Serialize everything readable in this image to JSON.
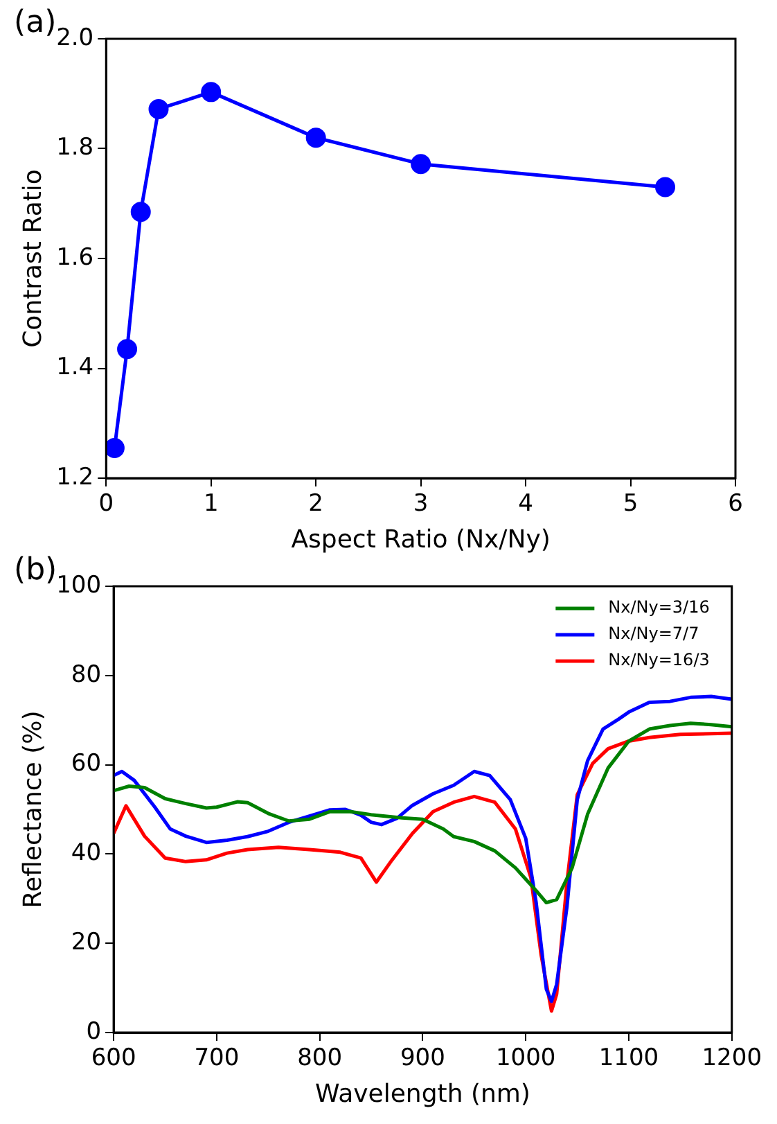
{
  "chart_data": [
    {
      "type": "line",
      "title": "(a)",
      "xlabel": "Aspect Ratio (Nx/Ny)",
      "ylabel": "Contrast Ratio",
      "xlim": [
        0,
        6
      ],
      "xticks": [
        0,
        1,
        2,
        3,
        4,
        5,
        6
      ],
      "ylim": [
        1.2,
        2.0
      ],
      "yticks": [
        {
          "value": 1.2,
          "label": "1.2"
        },
        {
          "value": 1.4,
          "label": "1.4"
        },
        {
          "value": 1.6,
          "label": "1.6"
        },
        {
          "value": 1.8,
          "label": "1.8"
        },
        {
          "value": 2.0,
          "label": "2.0"
        }
      ],
      "grid": false,
      "legend": false,
      "marker": "circle",
      "line_style": "solid",
      "series": [
        {
          "color": "#0000ff",
          "x": [
            0.08,
            0.2,
            0.33,
            0.5,
            1,
            2,
            3,
            5.33
          ],
          "values": [
            1.255,
            1.435,
            1.685,
            1.872,
            1.903,
            1.82,
            1.772,
            1.73
          ]
        }
      ]
    },
    {
      "type": "line",
      "title": "(b)",
      "xlabel": "Wavelength (nm)",
      "ylabel": "Reflectance (%)",
      "xlim": [
        600,
        1200
      ],
      "xticks": [
        600,
        700,
        800,
        900,
        1000,
        1100,
        1200
      ],
      "ylim": [
        0,
        100
      ],
      "yticks": [
        0,
        20,
        40,
        60,
        80,
        100
      ],
      "grid": false,
      "legend": "top right",
      "marker": "none",
      "line_style": "solid",
      "series": [
        {
          "name": "Nx/Ny=3/16",
          "color": "#008000",
          "x": [
            600,
            615,
            630,
            650,
            670,
            690,
            700,
            720,
            730,
            750,
            770,
            790,
            810,
            830,
            850,
            880,
            900,
            920,
            930,
            950,
            970,
            990,
            1010,
            1020,
            1030,
            1045,
            1060,
            1080,
            1100,
            1120,
            1140,
            1160,
            1180,
            1200
          ],
          "values": [
            54.2,
            55.2,
            54.9,
            52.4,
            51.3,
            50.3,
            50.5,
            51.7,
            51.5,
            49.1,
            47.4,
            47.8,
            49.5,
            49.5,
            48.8,
            48.1,
            47.8,
            45.6,
            43.9,
            42.8,
            40.7,
            36.9,
            31.8,
            29.1,
            29.8,
            36.9,
            48.9,
            59.3,
            65.3,
            68.0,
            68.8,
            69.3,
            69.0,
            68.5
          ]
        },
        {
          "name": "Nx/Ny=7/7",
          "color": "#0000ff",
          "x": [
            600,
            608,
            620,
            640,
            655,
            670,
            690,
            710,
            730,
            750,
            770,
            790,
            810,
            825,
            840,
            850,
            860,
            875,
            890,
            910,
            930,
            950,
            965,
            985,
            1000,
            1010,
            1020,
            1025,
            1030,
            1040,
            1050,
            1060,
            1075,
            1090,
            1100,
            1120,
            1140,
            1160,
            1180,
            1200
          ],
          "values": [
            57.6,
            58.5,
            56.5,
            50.5,
            45.6,
            44.0,
            42.6,
            43.1,
            43.9,
            45.1,
            47.1,
            48.5,
            49.9,
            50.0,
            48.7,
            47.1,
            46.6,
            48.0,
            50.9,
            53.5,
            55.4,
            58.5,
            57.6,
            52.2,
            43.5,
            29.3,
            9.7,
            7.0,
            10.8,
            28.2,
            52.2,
            60.9,
            68.0,
            70.2,
            71.8,
            74.0,
            74.2,
            75.1,
            75.3,
            74.7
          ]
        },
        {
          "name": "Nx/Ny=16/3",
          "color": "#ff0000",
          "x": [
            600,
            612,
            630,
            650,
            670,
            690,
            710,
            730,
            760,
            790,
            820,
            840,
            855,
            870,
            890,
            910,
            930,
            950,
            970,
            990,
            1005,
            1015,
            1025,
            1030,
            1040,
            1050,
            1065,
            1080,
            1100,
            1120,
            1150,
            1200
          ],
          "values": [
            44.6,
            50.8,
            44.0,
            39.1,
            38.3,
            38.7,
            40.2,
            41.0,
            41.5,
            41.0,
            40.4,
            39.1,
            33.7,
            38.6,
            44.6,
            49.5,
            51.6,
            52.9,
            51.6,
            45.6,
            34.7,
            17.3,
            4.8,
            8.6,
            33.7,
            53.3,
            60.3,
            63.6,
            65.3,
            66.1,
            66.8,
            67.1
          ]
        }
      ]
    }
  ]
}
